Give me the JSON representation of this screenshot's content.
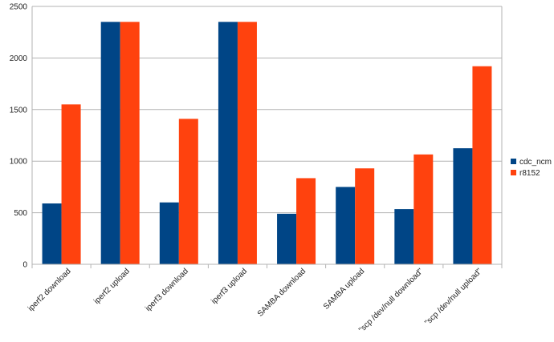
{
  "chart_data": {
    "type": "bar",
    "title": "",
    "xlabel": "",
    "ylabel": "",
    "ylim": [
      0,
      2500
    ],
    "yticks": [
      0,
      500,
      1000,
      1500,
      2000,
      2500
    ],
    "grid": true,
    "legend_position": "right",
    "categories": [
      "iperf2 download",
      "iperf2 upload",
      "iperf3 download",
      "iperf3 upload",
      "SAMBA download",
      "SAMBA upload",
      "\"scp /dev/null download\"",
      "\"scp /dev/null upload\""
    ],
    "series": [
      {
        "name": "cdc_ncm",
        "color": "#004586",
        "values": [
          590,
          2350,
          600,
          2350,
          490,
          750,
          535,
          1125
        ]
      },
      {
        "name": "r8152",
        "color": "#ff420e",
        "values": [
          1550,
          2350,
          1410,
          2350,
          835,
          930,
          1065,
          1920
        ]
      }
    ]
  }
}
